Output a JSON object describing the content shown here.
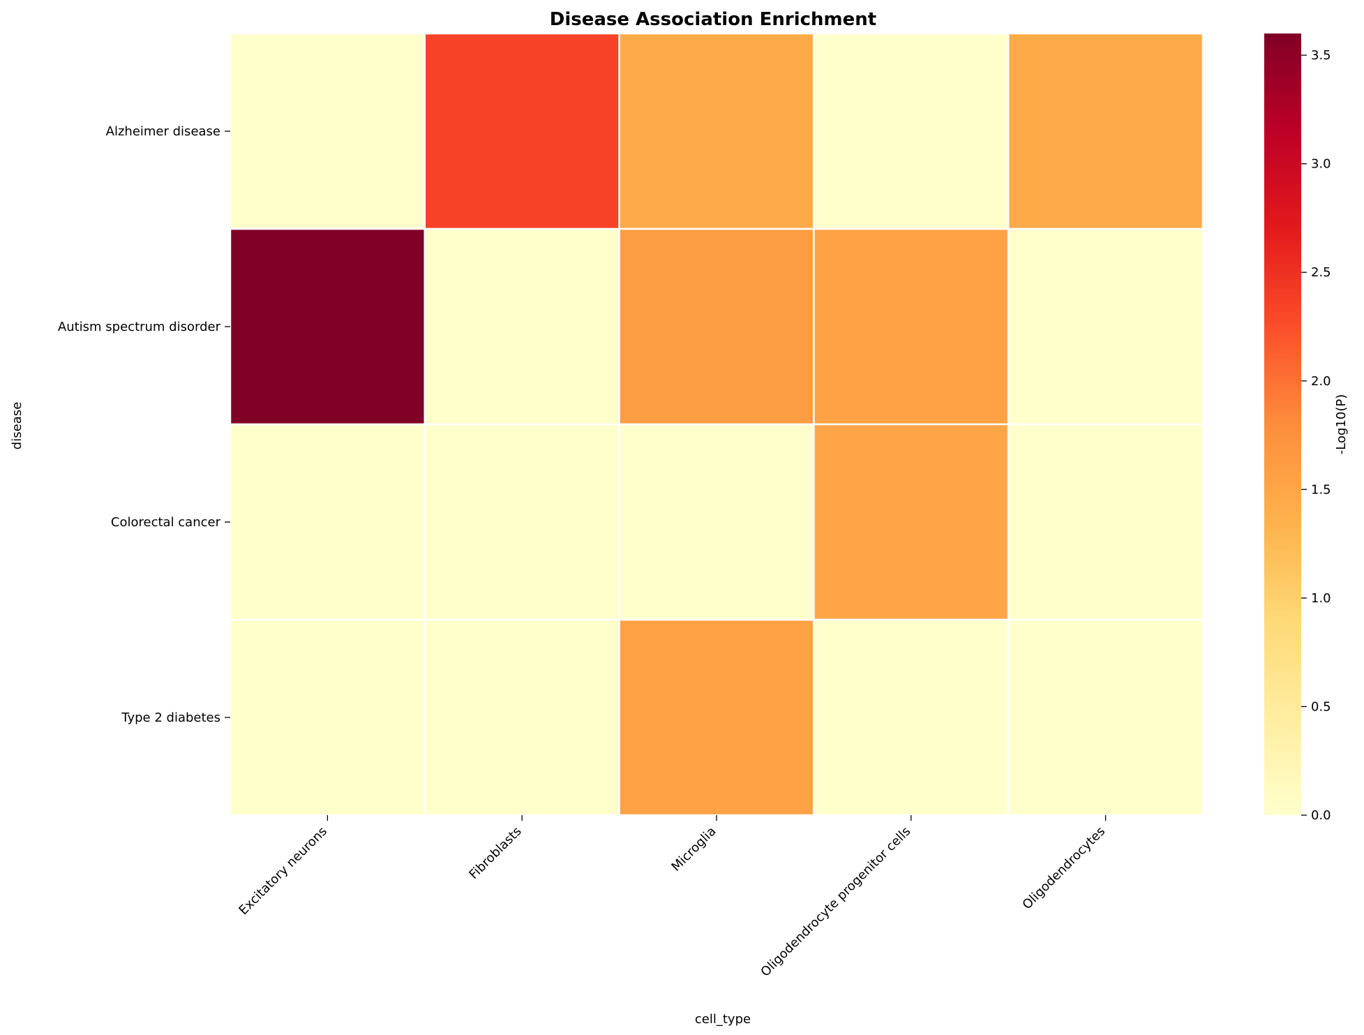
{
  "chart_data": {
    "type": "heatmap",
    "title": "Disease Association Enrichment",
    "xlabel": "cell_type",
    "ylabel": "disease",
    "x_categories": [
      "Excitatory neurons",
      "Fibroblasts",
      "Microglia",
      "Oligodendrocyte progenitor cells",
      "Oligodendrocytes"
    ],
    "y_categories": [
      "Alzheimer disease",
      "Autism spectrum disorder",
      "Colorectal cancer",
      "Type 2 diabetes"
    ],
    "values": [
      [
        0.0,
        2.35,
        1.45,
        0.0,
        1.45
      ],
      [
        3.6,
        0.0,
        1.6,
        1.55,
        0.0
      ],
      [
        0.0,
        0.0,
        0.0,
        1.5,
        0.0
      ],
      [
        0.0,
        0.0,
        1.55,
        0.0,
        0.0
      ]
    ],
    "colorbar": {
      "label": "-Log10(P)",
      "range": [
        0,
        3.6
      ],
      "ticks": [
        "0.0",
        "0.5",
        "1.0",
        "1.5",
        "2.0",
        "2.5",
        "3.0",
        "3.5"
      ],
      "colormap": "YlOrRd"
    },
    "grid": false,
    "legend": "colorbar-right"
  }
}
